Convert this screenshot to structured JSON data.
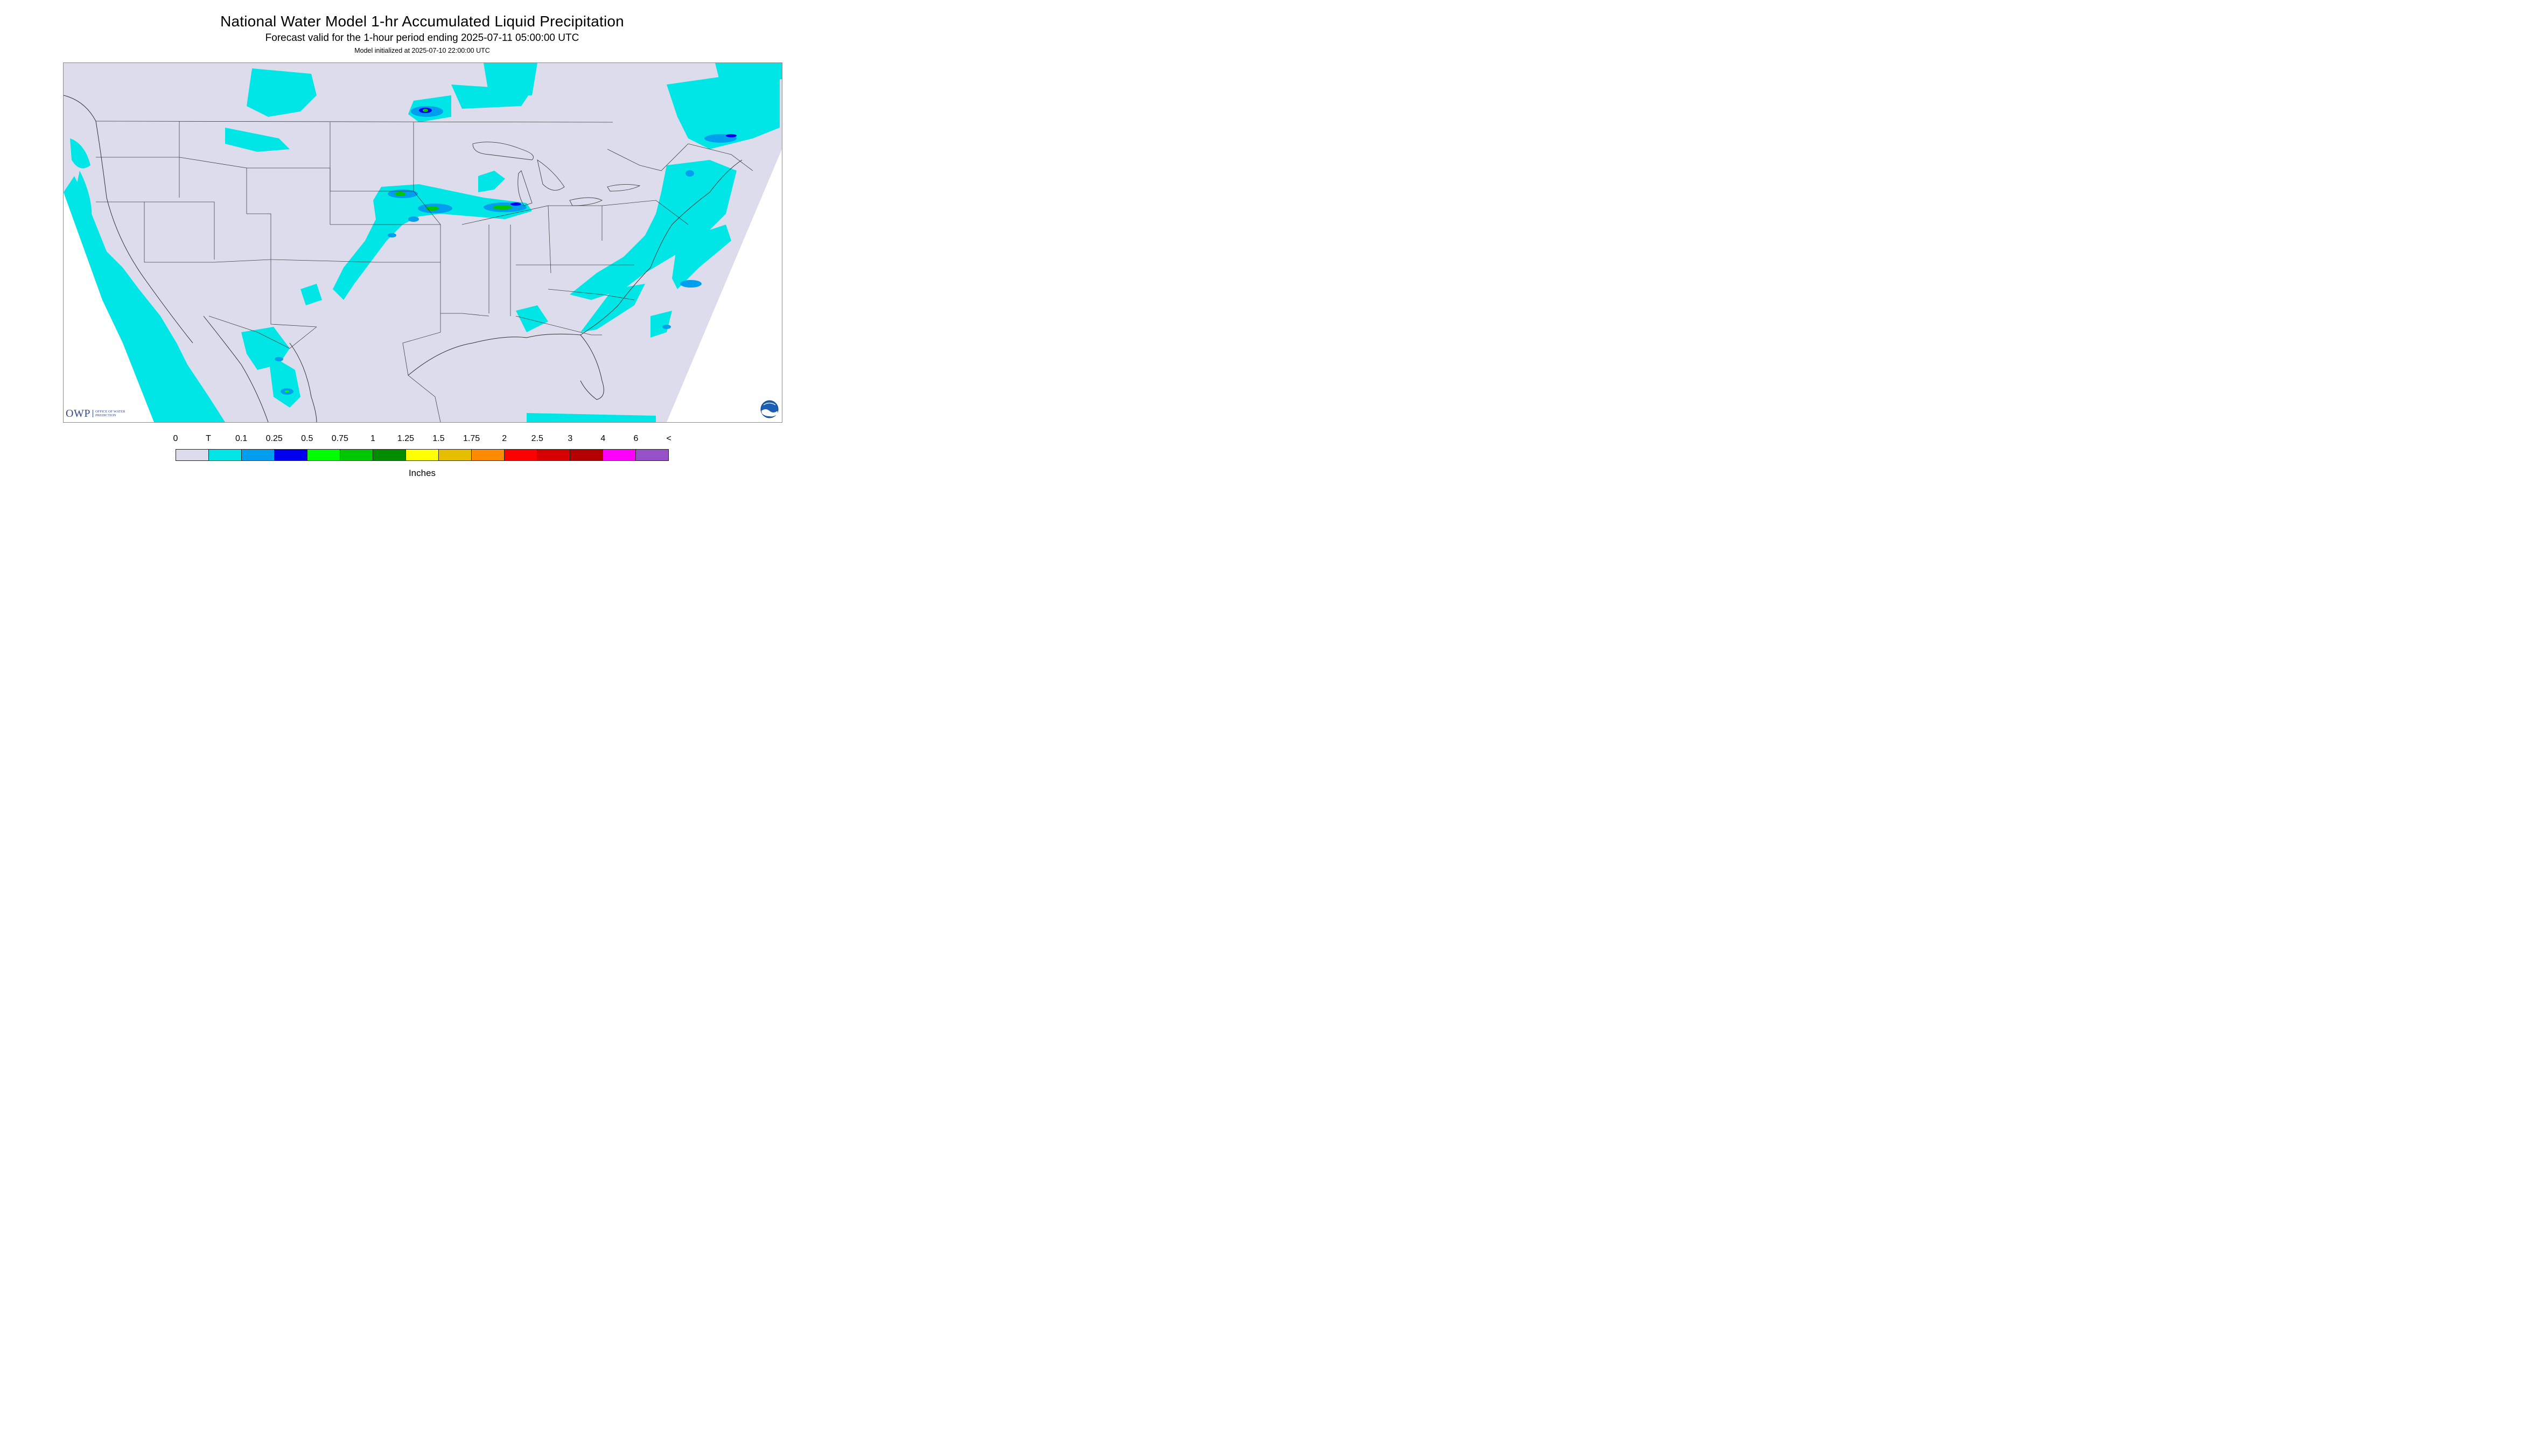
{
  "title": "National Water Model 1-hr Accumulated Liquid Precipitation",
  "subtitle": "Forecast valid for the 1-hour period ending 2025-07-11 05:00:00 UTC",
  "init_text": "Model initialized at 2025-07-10 22:00:00 UTC",
  "logo_owp": {
    "mark": "OWP",
    "text": "OFFICE OF WATER PREDICTION"
  },
  "logo_noaa": {
    "text": "NOAA"
  },
  "legend": {
    "labels": [
      "0",
      "T",
      "0.1",
      "0.25",
      "0.5",
      "0.75",
      "1",
      "1.25",
      "1.5",
      "1.75",
      "2",
      "2.5",
      "3",
      "4",
      "6",
      "<"
    ],
    "colors": [
      "#dcdcec",
      "#00e5e5",
      "#009eee",
      "#0000f0",
      "#00ff00",
      "#00c800",
      "#008c00",
      "#ffff00",
      "#e6be00",
      "#ff8c00",
      "#ff0000",
      "#d70000",
      "#b40000",
      "#ff00ff",
      "#9650c8"
    ],
    "units": "Inches"
  },
  "map": {
    "background_color": "#dcdcec",
    "outside_color": "#ffffff",
    "boundary_color": "#404040"
  }
}
